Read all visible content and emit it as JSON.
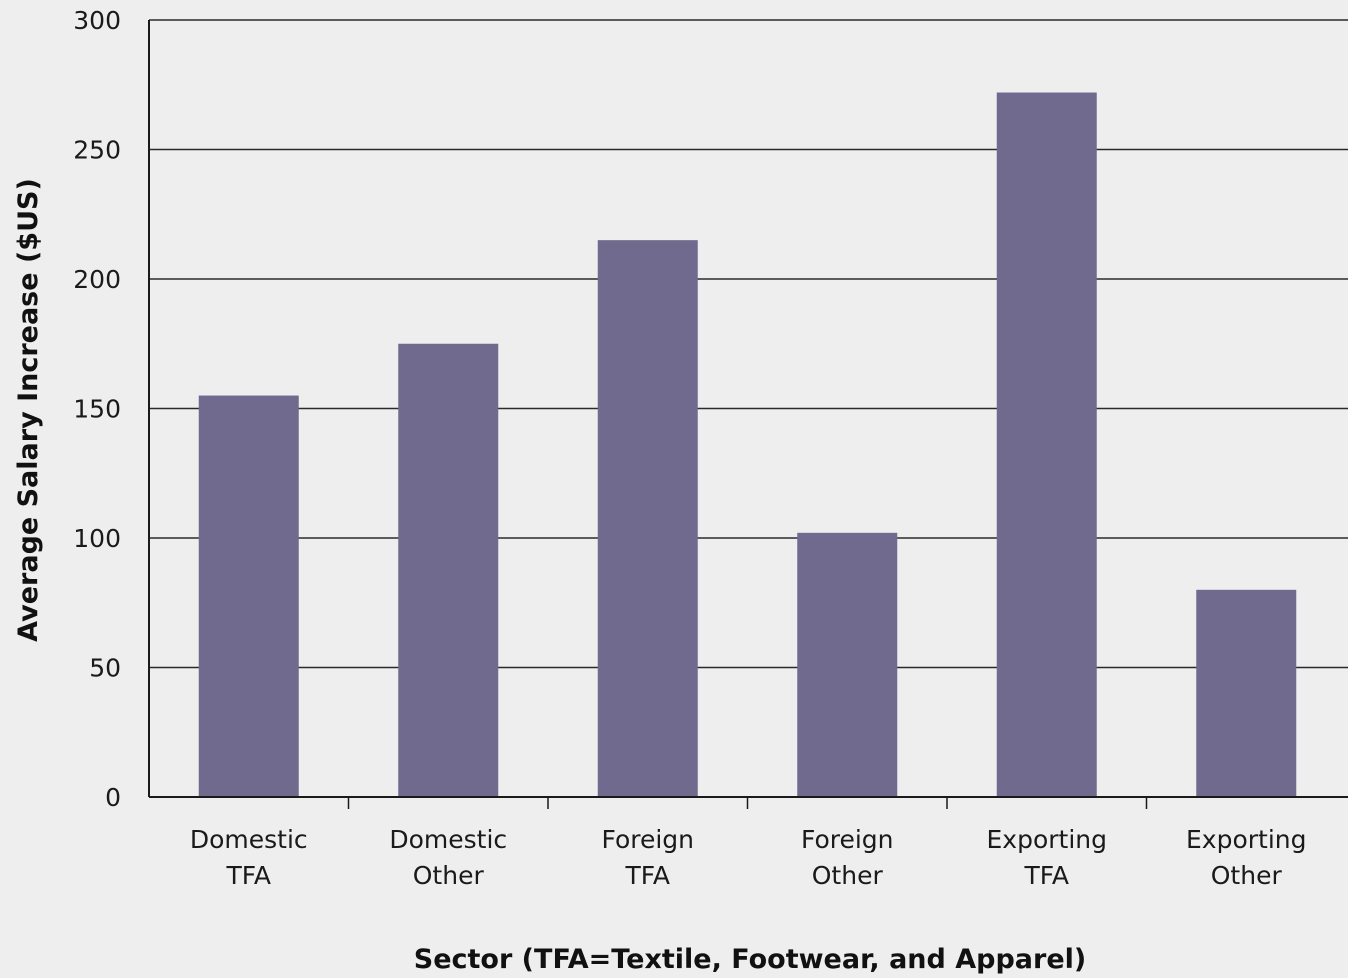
{
  "chart_data": {
    "type": "bar",
    "title": "",
    "xlabel": "Sector (TFA=Textile, Footwear, and Apparel)",
    "ylabel": "Average Salary Increase ($US)",
    "categories": [
      [
        "Domestic",
        "TFA"
      ],
      [
        "Domestic",
        "Other"
      ],
      [
        "Foreign",
        "TFA"
      ],
      [
        "Foreign",
        "Other"
      ],
      [
        "Exporting",
        "TFA"
      ],
      [
        "Exporting",
        "Other"
      ]
    ],
    "values": [
      155,
      175,
      215,
      102,
      272,
      80
    ],
    "ylim": [
      0,
      300
    ],
    "yticks": [
      0,
      50,
      100,
      150,
      200,
      250,
      300
    ],
    "grid": true,
    "legend": "none",
    "bar_color": "#6f6a8e"
  }
}
